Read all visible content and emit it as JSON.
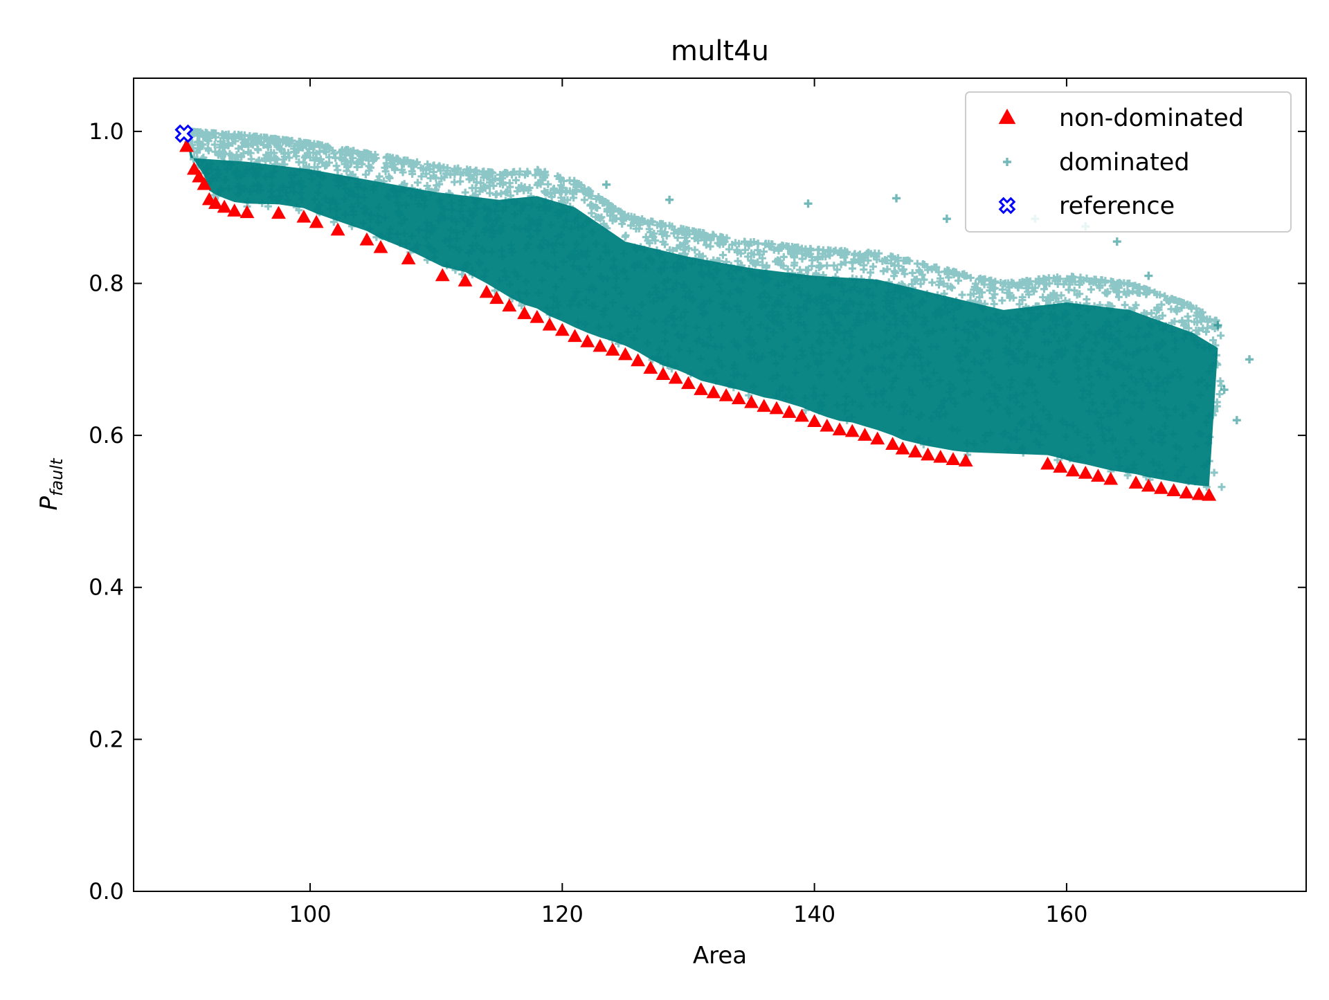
{
  "colors": {
    "non_dominated": "#ff0000",
    "dominated": "#008080",
    "reference": "#0000ff"
  },
  "chart_data": {
    "type": "scatter",
    "title": "mult4u",
    "xlabel": "Area",
    "ylabel_main": "P",
    "ylabel_sub": "fault",
    "xlim": [
      86,
      179
    ],
    "ylim": [
      0.0,
      1.07
    ],
    "x_ticks": [
      {
        "value": 100,
        "label": "100"
      },
      {
        "value": 120,
        "label": "120"
      },
      {
        "value": 140,
        "label": "140"
      },
      {
        "value": 160,
        "label": "160"
      }
    ],
    "y_ticks": [
      {
        "value": 0.0,
        "label": "0.0"
      },
      {
        "value": 0.2,
        "label": "0.2"
      },
      {
        "value": 0.4,
        "label": "0.4"
      },
      {
        "value": 0.6,
        "label": "0.6"
      },
      {
        "value": 0.8,
        "label": "0.8"
      },
      {
        "value": 1.0,
        "label": "1.0"
      }
    ],
    "grid": false,
    "legend_position": "top-right",
    "legend": [
      "non-dominated",
      "dominated",
      "reference"
    ],
    "series": [
      {
        "name": "non-dominated",
        "marker": "triangle",
        "points": [
          [
            90.2,
            0.98
          ],
          [
            90.8,
            0.95
          ],
          [
            91.2,
            0.94
          ],
          [
            91.6,
            0.93
          ],
          [
            92.0,
            0.91
          ],
          [
            92.5,
            0.905
          ],
          [
            93.2,
            0.9
          ],
          [
            94.0,
            0.895
          ],
          [
            95.0,
            0.893
          ],
          [
            97.5,
            0.892
          ],
          [
            99.5,
            0.887
          ],
          [
            100.5,
            0.88
          ],
          [
            102.2,
            0.87
          ],
          [
            104.5,
            0.857
          ],
          [
            105.6,
            0.847
          ],
          [
            107.8,
            0.832
          ],
          [
            110.5,
            0.81
          ],
          [
            112.3,
            0.803
          ],
          [
            114.0,
            0.788
          ],
          [
            114.8,
            0.78
          ],
          [
            115.8,
            0.77
          ],
          [
            117.0,
            0.76
          ],
          [
            118.0,
            0.755
          ],
          [
            119.0,
            0.745
          ],
          [
            120.0,
            0.738
          ],
          [
            121.0,
            0.73
          ],
          [
            122.0,
            0.723
          ],
          [
            123.0,
            0.717
          ],
          [
            124.0,
            0.712
          ],
          [
            125.0,
            0.706
          ],
          [
            126.0,
            0.698
          ],
          [
            127.0,
            0.688
          ],
          [
            128.0,
            0.68
          ],
          [
            129.0,
            0.675
          ],
          [
            130.0,
            0.668
          ],
          [
            131.0,
            0.66
          ],
          [
            132.0,
            0.656
          ],
          [
            133.0,
            0.652
          ],
          [
            134.0,
            0.648
          ],
          [
            135.0,
            0.643
          ],
          [
            136.0,
            0.638
          ],
          [
            137.0,
            0.635
          ],
          [
            138.0,
            0.63
          ],
          [
            139.0,
            0.625
          ],
          [
            140.0,
            0.618
          ],
          [
            141.0,
            0.612
          ],
          [
            142.0,
            0.607
          ],
          [
            143.0,
            0.605
          ],
          [
            144.0,
            0.6
          ],
          [
            145.0,
            0.595
          ],
          [
            146.2,
            0.588
          ],
          [
            147.0,
            0.582
          ],
          [
            148.0,
            0.578
          ],
          [
            149.0,
            0.574
          ],
          [
            150.0,
            0.571
          ],
          [
            151.0,
            0.568
          ],
          [
            152.0,
            0.566
          ],
          [
            158.5,
            0.562
          ],
          [
            159.5,
            0.558
          ],
          [
            160.5,
            0.553
          ],
          [
            161.5,
            0.55
          ],
          [
            162.5,
            0.546
          ],
          [
            163.5,
            0.542
          ],
          [
            165.5,
            0.537
          ],
          [
            166.5,
            0.533
          ],
          [
            167.5,
            0.53
          ],
          [
            168.5,
            0.527
          ],
          [
            169.5,
            0.524
          ],
          [
            170.5,
            0.522
          ],
          [
            171.3,
            0.521
          ]
        ]
      },
      {
        "name": "dominated",
        "marker": "plus",
        "description_of_extent": "dense cloud between the non-dominated front and an upper envelope",
        "upper_envelope": [
          [
            90.5,
            1.0
          ],
          [
            95,
            0.995
          ],
          [
            100,
            0.985
          ],
          [
            105,
            0.97
          ],
          [
            110,
            0.955
          ],
          [
            115,
            0.945
          ],
          [
            118,
            0.95
          ],
          [
            121,
            0.935
          ],
          [
            125,
            0.89
          ],
          [
            130,
            0.87
          ],
          [
            135,
            0.855
          ],
          [
            140,
            0.845
          ],
          [
            145,
            0.84
          ],
          [
            150,
            0.82
          ],
          [
            155,
            0.8
          ],
          [
            160,
            0.81
          ],
          [
            165,
            0.8
          ],
          [
            170,
            0.77
          ],
          [
            172,
            0.75
          ]
        ],
        "outliers": [
          [
            123.5,
            0.93
          ],
          [
            128.5,
            0.91
          ],
          [
            139.5,
            0.905
          ],
          [
            146.5,
            0.912
          ],
          [
            150.5,
            0.885
          ],
          [
            157.5,
            0.885
          ],
          [
            161.5,
            0.875
          ],
          [
            164.0,
            0.855
          ],
          [
            166.5,
            0.81
          ],
          [
            172.0,
            0.745
          ],
          [
            174.5,
            0.7
          ],
          [
            173.5,
            0.62
          ],
          [
            172.5,
            0.66
          ]
        ]
      },
      {
        "name": "reference",
        "marker": "x",
        "points": [
          [
            90.0,
            0.997
          ]
        ]
      }
    ]
  }
}
